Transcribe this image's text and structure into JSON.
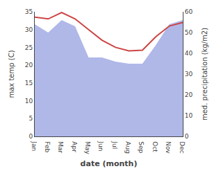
{
  "chart_data": {
    "type": "line",
    "categories": [
      "Jan",
      "Feb",
      "Mar",
      "Apr",
      "May",
      "Jun",
      "Jul",
      "Aug",
      "Sep",
      "Oct",
      "Nov",
      "Dec"
    ],
    "xlabel": "date (month)",
    "ylabel": "max temp (C)",
    "y2label": "med. precipitation (kg/m2)",
    "series": [
      {
        "type": "area",
        "color": "#b0b8e8",
        "axis": "y2",
        "values": [
          54.0,
          50.0,
          56.0,
          53.0,
          38.0,
          38.0,
          36.0,
          35.0,
          35.0,
          44.0,
          54.0,
          56.0
        ]
      },
      {
        "type": "line",
        "color": "#cc4444",
        "values": [
          33.5,
          33.0,
          34.8,
          33.0,
          30.0,
          27.0,
          25.0,
          24.0,
          24.2,
          28.0,
          31.0,
          32.0
        ]
      }
    ],
    "ylim": [
      0,
      35
    ],
    "yticks": [
      0,
      5,
      10,
      15,
      20,
      25,
      30,
      35
    ],
    "y2lim": [
      0,
      60
    ],
    "y2ticks": [
      0,
      10,
      20,
      30,
      40,
      50,
      60
    ],
    "grid": false
  }
}
